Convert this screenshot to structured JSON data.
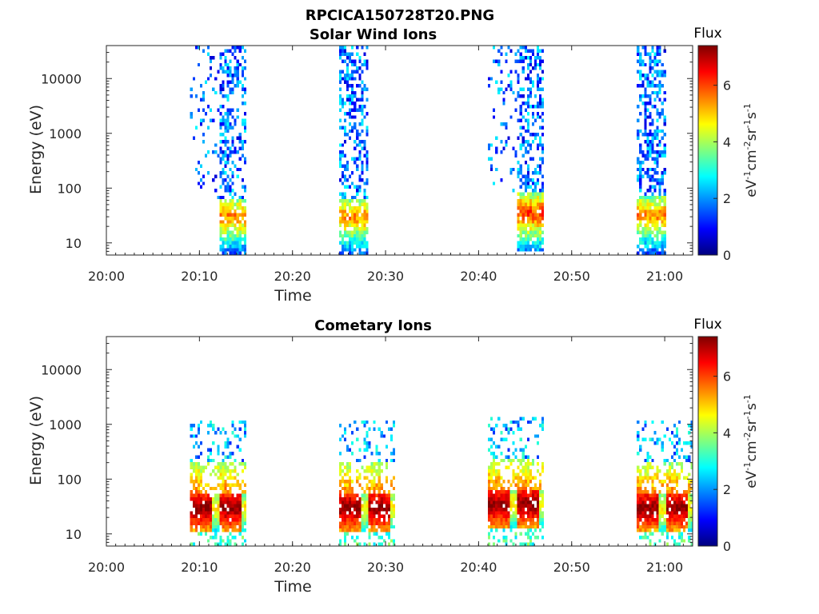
{
  "figure": {
    "title": "RPCICA150728T20.PNG"
  },
  "colorbar": {
    "label": "Flux",
    "unit_base": "eV",
    "unit_parts": [
      {
        "text": "eV",
        "sup": "-1"
      },
      {
        "text": "cm",
        "sup": "-2"
      },
      {
        "text": "sr",
        "sup": "-1"
      },
      {
        "text": "s",
        "sup": "-1"
      }
    ],
    "ticks": [
      "0",
      "2",
      "4",
      "6"
    ],
    "range": [
      0,
      7.4
    ],
    "colormap": [
      "#00007f",
      "#0000ff",
      "#007fff",
      "#00ffff",
      "#7fff7f",
      "#ffff00",
      "#ff7f00",
      "#ff0000",
      "#7f0000"
    ]
  },
  "chart_data": [
    {
      "type": "heatmap",
      "title": "Solar Wind Ions",
      "xlabel": "Time",
      "ylabel": "Energy (eV)",
      "x_ticks": [
        "20:00",
        "20:10",
        "20:20",
        "20:30",
        "20:40",
        "20:50",
        "21:00"
      ],
      "y_ticks": [
        "10",
        "100",
        "1000",
        "10000"
      ],
      "y_scale": "log",
      "xlim": [
        "20:00",
        "21:03"
      ],
      "ylim": [
        6,
        40000
      ],
      "groups": [
        {
          "start": "20:09",
          "core_start": "20:12",
          "core_end": "20:15",
          "peak_energy_eV": 30,
          "peak_flux": 5.0
        },
        {
          "start": "20:25",
          "core_start": "20:25",
          "core_end": "20:28",
          "peak_energy_eV": 30,
          "peak_flux": 5.0
        },
        {
          "start": "20:41",
          "core_start": "20:44",
          "core_end": "20:47",
          "peak_energy_eV": 35,
          "peak_flux": 5.5
        },
        {
          "start": "20:57",
          "core_start": "20:57",
          "core_end": "21:00",
          "peak_energy_eV": 32,
          "peak_flux": 5.0
        }
      ]
    },
    {
      "type": "heatmap",
      "title": "Cometary Ions",
      "xlabel": "Time",
      "ylabel": "Energy (eV)",
      "x_ticks": [
        "20:00",
        "20:10",
        "20:20",
        "20:30",
        "20:40",
        "20:50",
        "21:00"
      ],
      "y_ticks": [
        "10",
        "100",
        "1000",
        "10000"
      ],
      "y_scale": "log",
      "xlim": [
        "20:00",
        "21:03"
      ],
      "ylim": [
        6,
        40000
      ],
      "groups": [
        {
          "start": "20:09",
          "core_start": "20:09",
          "core_end": "20:15",
          "peak_energy_eV": 30,
          "peak_flux": 7.0
        },
        {
          "start": "20:25",
          "core_start": "20:25",
          "core_end": "20:31",
          "peak_energy_eV": 30,
          "peak_flux": 7.0
        },
        {
          "start": "20:41",
          "core_start": "20:41",
          "core_end": "20:47",
          "peak_energy_eV": 35,
          "peak_flux": 7.0
        },
        {
          "start": "20:57",
          "core_start": "20:57",
          "core_end": "21:03",
          "peak_energy_eV": 30,
          "peak_flux": 7.0
        }
      ]
    }
  ]
}
